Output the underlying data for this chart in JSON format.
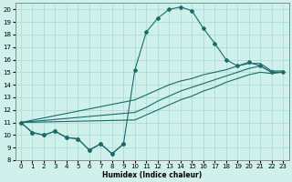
{
  "xlabel": "Humidex (Indice chaleur)",
  "bg_color": "#cff0eb",
  "line_color": "#1a6b6b",
  "grid_color": "#aaddd6",
  "curve_main_x": [
    0,
    1,
    2,
    3,
    4,
    5,
    6,
    7,
    8,
    9,
    10,
    11,
    12,
    13,
    14,
    15,
    16,
    17,
    18,
    19,
    20,
    21,
    22,
    23
  ],
  "curve_main_y": [
    11.0,
    10.2,
    10.0,
    10.3,
    9.8,
    9.7,
    8.8,
    9.3,
    8.5,
    9.3,
    15.2,
    18.2,
    19.3,
    20.0,
    20.2,
    19.9,
    18.5,
    17.3,
    16.0,
    15.5,
    15.8,
    15.5,
    15.0,
    15.0
  ],
  "curve_short_x": [
    0,
    1,
    2,
    3,
    4,
    5,
    6,
    7,
    8,
    9
  ],
  "curve_short_y": [
    11.0,
    10.2,
    10.0,
    10.3,
    9.8,
    9.7,
    8.8,
    9.3,
    8.5,
    9.3
  ],
  "line_upper_x": [
    0,
    10,
    11,
    12,
    13,
    14,
    15,
    16,
    17,
    18,
    19,
    20,
    21,
    22,
    23
  ],
  "line_upper_y": [
    11.0,
    12.8,
    13.2,
    13.6,
    14.0,
    14.3,
    14.5,
    14.8,
    15.0,
    15.2,
    15.5,
    15.7,
    15.7,
    15.1,
    15.1
  ],
  "line_mid_x": [
    0,
    10,
    11,
    12,
    13,
    14,
    15,
    16,
    17,
    18,
    19,
    20,
    21,
    22,
    23
  ],
  "line_mid_y": [
    11.0,
    11.8,
    12.2,
    12.7,
    13.1,
    13.5,
    13.8,
    14.1,
    14.4,
    14.7,
    15.0,
    15.3,
    15.5,
    15.0,
    15.0
  ],
  "line_lower_x": [
    0,
    10,
    11,
    12,
    13,
    14,
    15,
    16,
    17,
    18,
    19,
    20,
    21,
    22,
    23
  ],
  "line_lower_y": [
    11.0,
    11.2,
    11.6,
    12.0,
    12.4,
    12.8,
    13.1,
    13.5,
    13.8,
    14.2,
    14.5,
    14.8,
    15.0,
    14.9,
    15.0
  ],
  "xlim": [
    -0.5,
    23.5
  ],
  "ylim": [
    8,
    20.5
  ],
  "yticks": [
    8,
    9,
    10,
    11,
    12,
    13,
    14,
    15,
    16,
    17,
    18,
    19,
    20
  ],
  "xticks": [
    0,
    1,
    2,
    3,
    4,
    5,
    6,
    7,
    8,
    9,
    10,
    11,
    12,
    13,
    14,
    15,
    16,
    17,
    18,
    19,
    20,
    21,
    22,
    23
  ],
  "xlabel_fontsize": 5.5,
  "tick_fontsize": 5.0,
  "linewidth": 0.8,
  "markersize": 2.0
}
